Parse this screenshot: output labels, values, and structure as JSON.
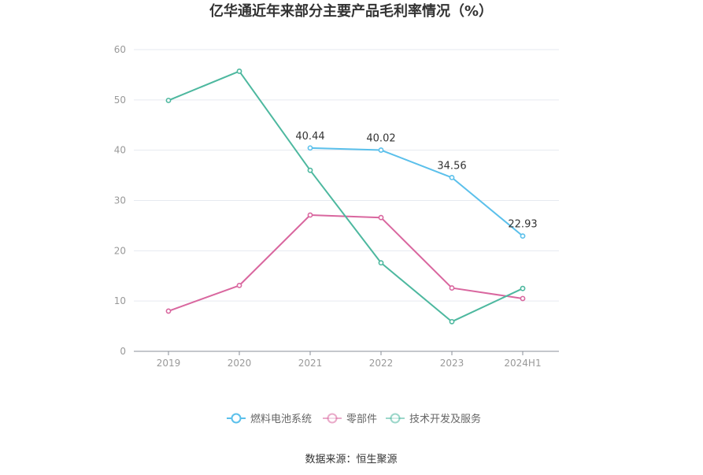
{
  "chart_data": {
    "type": "line",
    "title": "亿华通近年来部分主要产品毛利率情况（%）",
    "categories": [
      "2019",
      "2020",
      "2021",
      "2022",
      "2023",
      "2024H1"
    ],
    "ylim": [
      0,
      60
    ],
    "yticks": [
      0,
      10,
      20,
      30,
      40,
      50,
      60
    ],
    "grid": true,
    "legend_position": "bottom",
    "series": [
      {
        "name": "燃料电池系统",
        "color": "#5bc0eb",
        "values": [
          null,
          null,
          40.44,
          40.02,
          34.56,
          22.93
        ],
        "labels": [
          null,
          null,
          "40.44",
          "40.02",
          "34.56",
          "22.93"
        ]
      },
      {
        "name": "零部件",
        "color": "#d9679f",
        "values": [
          8.0,
          13.1,
          27.1,
          26.6,
          12.6,
          10.5
        ]
      },
      {
        "name": "技术开发及服务",
        "color": "#4db89f",
        "values": [
          49.9,
          55.7,
          36.0,
          17.6,
          5.9,
          12.5
        ]
      }
    ]
  },
  "source": "数据来源：恒生聚源"
}
